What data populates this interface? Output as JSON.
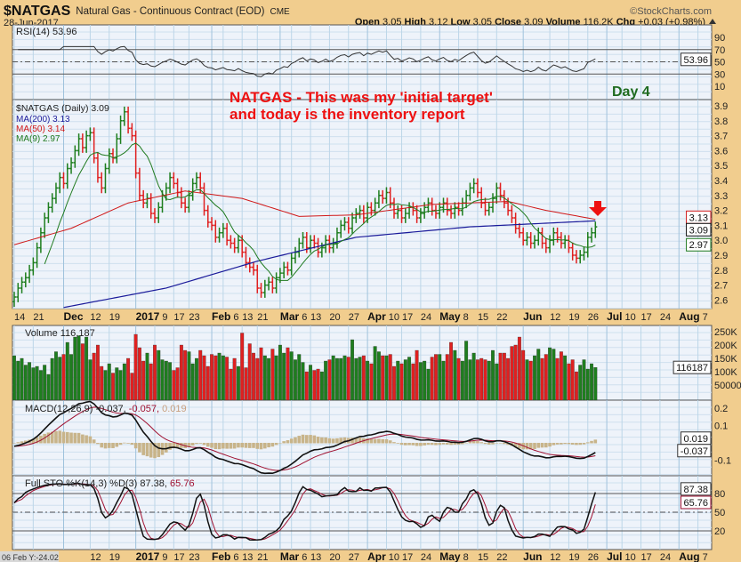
{
  "header": {
    "symbol": "$NATGAS",
    "name": "Natural Gas - Continuous Contract (EOD)",
    "exchange": "CME",
    "date": "28-Jun-2017",
    "brand": "©StockCharts.com",
    "open_label": "Open",
    "open": "3.05",
    "high_label": "High",
    "high": "3.12",
    "low_label": "Low",
    "low": "3.05",
    "close_label": "Close",
    "close": "3.09",
    "volume_label": "Volume",
    "volume": "116.2K",
    "chg_label": "Chg",
    "chg": "+0.03 (+0.98%)",
    "chg_icon": "triangle-up"
  },
  "annotations": {
    "note_line1": "NATGAS - This was my 'initial target'",
    "note_line2": "and today is the inventory report",
    "day": "Day 4",
    "note_color": "#ee1111",
    "day_color": "#1f6b1f"
  },
  "status": {
    "cursor": "06 Feb Y:-24.02"
  },
  "colors": {
    "up": "#1e7e1e",
    "down": "#e02020",
    "ma200": "#1a1a9a",
    "ma50": "#d01818",
    "ma9": "#1f7a1f",
    "hist": "#c8b48a"
  },
  "chart_data": [
    {
      "type": "line",
      "title": "RSI(14) 53.96",
      "legend": "RSI(14) 53.96",
      "last": "53.96",
      "y_ticks": [
        "90",
        "70",
        "50",
        "30",
        "10"
      ],
      "ylim": [
        0,
        100
      ],
      "reference_lines": [
        70,
        50,
        30
      ]
    },
    {
      "type": "ohlc",
      "title": "$NATGAS (Daily) 3.09",
      "legend": [
        "$NATGAS (Daily) 3.09",
        "MA(200) 3.13",
        "MA(50) 3.14",
        "MA(9) 2.97"
      ],
      "ylim": [
        2.55,
        3.95
      ],
      "y_ticks": [
        "3.9",
        "3.8",
        "3.7",
        "3.6",
        "3.5",
        "3.4",
        "3.3",
        "3.2",
        "3.1",
        "3.0",
        "2.9",
        "2.8",
        "2.7",
        "2.6"
      ],
      "last_labels": {
        "ma200": "3.13",
        "close": "3.09",
        "ma9": "2.97"
      },
      "x_ticks": [
        {
          "label": "14",
          "i": 0,
          "major": false
        },
        {
          "label": "21",
          "i": 5,
          "major": false
        },
        {
          "label": "Dec",
          "i": 13,
          "major": true
        },
        {
          "label": "12",
          "i": 20,
          "major": false
        },
        {
          "label": "19",
          "i": 25,
          "major": false
        },
        {
          "label": "2017",
          "i": 32,
          "major": true
        },
        {
          "label": "9",
          "i": 37,
          "major": false
        },
        {
          "label": "17",
          "i": 42,
          "major": false
        },
        {
          "label": "23",
          "i": 46,
          "major": false
        },
        {
          "label": "Feb",
          "i": 52,
          "major": true
        },
        {
          "label": "6",
          "i": 55,
          "major": false
        },
        {
          "label": "13",
          "i": 60,
          "major": false
        },
        {
          "label": "21",
          "i": 64,
          "major": false
        },
        {
          "label": "Mar",
          "i": 70,
          "major": true
        },
        {
          "label": "6",
          "i": 73,
          "major": false
        },
        {
          "label": "13",
          "i": 78,
          "major": false
        },
        {
          "label": "20",
          "i": 83,
          "major": false
        },
        {
          "label": "27",
          "i": 88,
          "major": false
        },
        {
          "label": "Apr",
          "i": 93,
          "major": true
        },
        {
          "label": "10",
          "i": 98,
          "major": false
        },
        {
          "label": "17",
          "i": 102,
          "major": false
        },
        {
          "label": "24",
          "i": 107,
          "major": false
        },
        {
          "label": "May",
          "i": 112,
          "major": true
        },
        {
          "label": "8",
          "i": 117,
          "major": false
        },
        {
          "label": "15",
          "i": 122,
          "major": false
        },
        {
          "label": "22",
          "i": 127,
          "major": false
        },
        {
          "label": "Jun",
          "i": 134,
          "major": true
        },
        {
          "label": "12",
          "i": 141,
          "major": false
        },
        {
          "label": "19",
          "i": 146,
          "major": false
        },
        {
          "label": "26",
          "i": 151,
          "major": false
        },
        {
          "label": "Jul",
          "i": 156,
          "major": true
        },
        {
          "label": "10",
          "i": 160,
          "major": false
        },
        {
          "label": "17",
          "i": 165,
          "major": false
        },
        {
          "label": "24",
          "i": 170,
          "major": false
        },
        {
          "label": "Aug",
          "i": 175,
          "major": true
        },
        {
          "label": "7",
          "i": 180,
          "major": false
        }
      ],
      "close": [
        2.62,
        2.68,
        2.72,
        2.75,
        2.8,
        2.85,
        2.95,
        3.05,
        3.15,
        3.22,
        3.28,
        3.35,
        3.42,
        3.38,
        3.48,
        3.52,
        3.6,
        3.68,
        3.62,
        3.7,
        3.72,
        3.55,
        3.42,
        3.35,
        3.48,
        3.58,
        3.55,
        3.68,
        3.8,
        3.86,
        3.75,
        3.7,
        3.45,
        3.3,
        3.25,
        3.28,
        3.18,
        3.15,
        3.22,
        3.3,
        3.35,
        3.42,
        3.38,
        3.32,
        3.25,
        3.22,
        3.3,
        3.38,
        3.42,
        3.35,
        3.2,
        3.12,
        3.1,
        3.02,
        3.05,
        3.08,
        3.0,
        2.98,
        2.95,
        3.0,
        2.92,
        2.85,
        2.82,
        2.8,
        2.68,
        2.65,
        2.7,
        2.72,
        2.68,
        2.75,
        2.78,
        2.82,
        2.8,
        2.88,
        2.92,
        2.98,
        3.02,
        2.95,
        3.0,
        2.98,
        2.92,
        2.95,
        3.0,
        2.95,
        2.98,
        3.05,
        3.1,
        3.12,
        3.08,
        3.15,
        3.18,
        3.2,
        3.15,
        3.22,
        3.2,
        3.25,
        3.3,
        3.28,
        3.32,
        3.25,
        3.18,
        3.2,
        3.15,
        3.18,
        3.22,
        3.2,
        3.15,
        3.18,
        3.22,
        3.25,
        3.2,
        3.18,
        3.22,
        3.25,
        3.2,
        3.18,
        3.22,
        3.2,
        3.25,
        3.3,
        3.35,
        3.38,
        3.32,
        3.25,
        3.2,
        3.22,
        3.28,
        3.35,
        3.3,
        3.25,
        3.2,
        3.15,
        3.08,
        3.05,
        3.0,
        3.02,
        2.98,
        3.0,
        3.05,
        2.98,
        2.95,
        3.0,
        3.05,
        3.02,
        2.98,
        3.0,
        2.95,
        2.9,
        2.88,
        2.9,
        2.92,
        3.02,
        3.05,
        3.09
      ],
      "ma200_keypoints": [
        [
          13,
          2.55
        ],
        [
          40,
          2.68
        ],
        [
          64,
          2.86
        ],
        [
          90,
          3.02
        ],
        [
          120,
          3.09
        ],
        [
          153,
          3.13
        ]
      ],
      "ma50_keypoints": [
        [
          0,
          2.97
        ],
        [
          15,
          3.08
        ],
        [
          30,
          3.25
        ],
        [
          45,
          3.33
        ],
        [
          60,
          3.28
        ],
        [
          75,
          3.16
        ],
        [
          90,
          3.17
        ],
        [
          110,
          3.24
        ],
        [
          130,
          3.26
        ],
        [
          140,
          3.2
        ],
        [
          153,
          3.14
        ]
      ]
    },
    {
      "type": "bar",
      "title": "Volume 116,187",
      "legend": "Volume 116,187",
      "last": "116187",
      "y_ticks": [
        "250K",
        "200K",
        "150K",
        "100K",
        "50000"
      ],
      "units": "thousands",
      "values": [
        160,
        140,
        150,
        125,
        135,
        115,
        120,
        105,
        125,
        90,
        150,
        175,
        155,
        165,
        210,
        165,
        230,
        235,
        205,
        230,
        145,
        170,
        200,
        120,
        105,
        130,
        95,
        115,
        105,
        130,
        150,
        95,
        240,
        190,
        140,
        170,
        130,
        200,
        180,
        145,
        140,
        135,
        105,
        115,
        200,
        180,
        175,
        130,
        150,
        180,
        160,
        120,
        165,
        160,
        170,
        160,
        155,
        110,
        150,
        120,
        245,
        115,
        205,
        170,
        150,
        190,
        160,
        150,
        185,
        160,
        200,
        170,
        190,
        175,
        145,
        165,
        135,
        100,
        125,
        105,
        110,
        100,
        140,
        145,
        160,
        150,
        150,
        160,
        155,
        220,
        150,
        155,
        160,
        140,
        130,
        195,
        175,
        160,
        160,
        165,
        120,
        140,
        130,
        145,
        155,
        130,
        180,
        135,
        140,
        110,
        155,
        165,
        165,
        140,
        165,
        210,
        180,
        150,
        140,
        215,
        145,
        170,
        145,
        150,
        145,
        140,
        180,
        130,
        170,
        170,
        150,
        195,
        200,
        230,
        180,
        145,
        140,
        160,
        185,
        150,
        165,
        190,
        185,
        150,
        175,
        160,
        130,
        145,
        100,
        125,
        145,
        110,
        130,
        116.187
      ]
    },
    {
      "type": "line",
      "title": "MACD(12,26,9) -0.037, -0.057, 0.019",
      "legend_name": "MACD(12,26,9)",
      "macd": "-0.037,",
      "signal": "-0.057,",
      "histogram": "0.019",
      "last_labels": [
        "0.019",
        "-0.037"
      ],
      "y_ticks": [
        "0.2",
        "0.1",
        "-0.1"
      ],
      "ylim": [
        -0.15,
        0.25
      ]
    },
    {
      "type": "line",
      "title": "Full STO %K(14,3) %D(3) 87.38, 65.76",
      "legend_name": "Full STO %K(14,3) %D(3)",
      "k": "87.38,",
      "d": "65.76",
      "last_labels": [
        "87.38",
        "65.76"
      ],
      "y_ticks": [
        "80",
        "50",
        "20"
      ],
      "ylim": [
        0,
        100
      ]
    }
  ]
}
